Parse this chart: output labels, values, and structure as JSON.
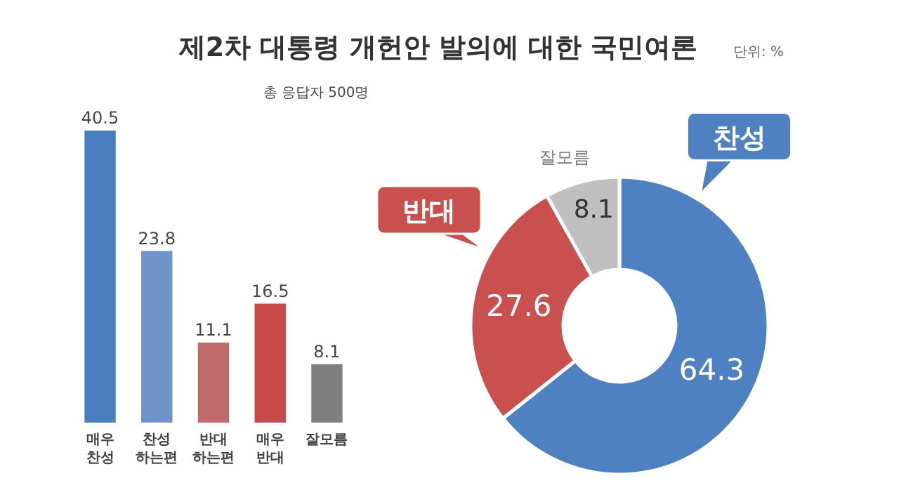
{
  "chart_data": [
    {
      "type": "bar",
      "title": "제2차 대통령 개헌안 발의에 대한 국민여론",
      "subtitle": "총 응답자 500명",
      "annotations": [
        "단위: %"
      ],
      "categories": [
        "매우 찬성",
        "찬성 하는편",
        "반대 하는편",
        "매우 반대",
        "잘모름"
      ],
      "values": [
        40.5,
        23.8,
        11.1,
        16.5,
        8.1
      ],
      "colors": [
        "#4a7cc0",
        "#6d93c8",
        "#c06a6a",
        "#c94a4a",
        "#7f7f7f"
      ],
      "data_labels": true
    },
    {
      "type": "donut",
      "categories": [
        "찬성",
        "반대",
        "잘모름"
      ],
      "values": [
        64.3,
        27.6,
        8.1
      ],
      "colors": [
        "#4f81c2",
        "#c9504f",
        "#bfbfbf"
      ],
      "data_labels": true
    }
  ]
}
